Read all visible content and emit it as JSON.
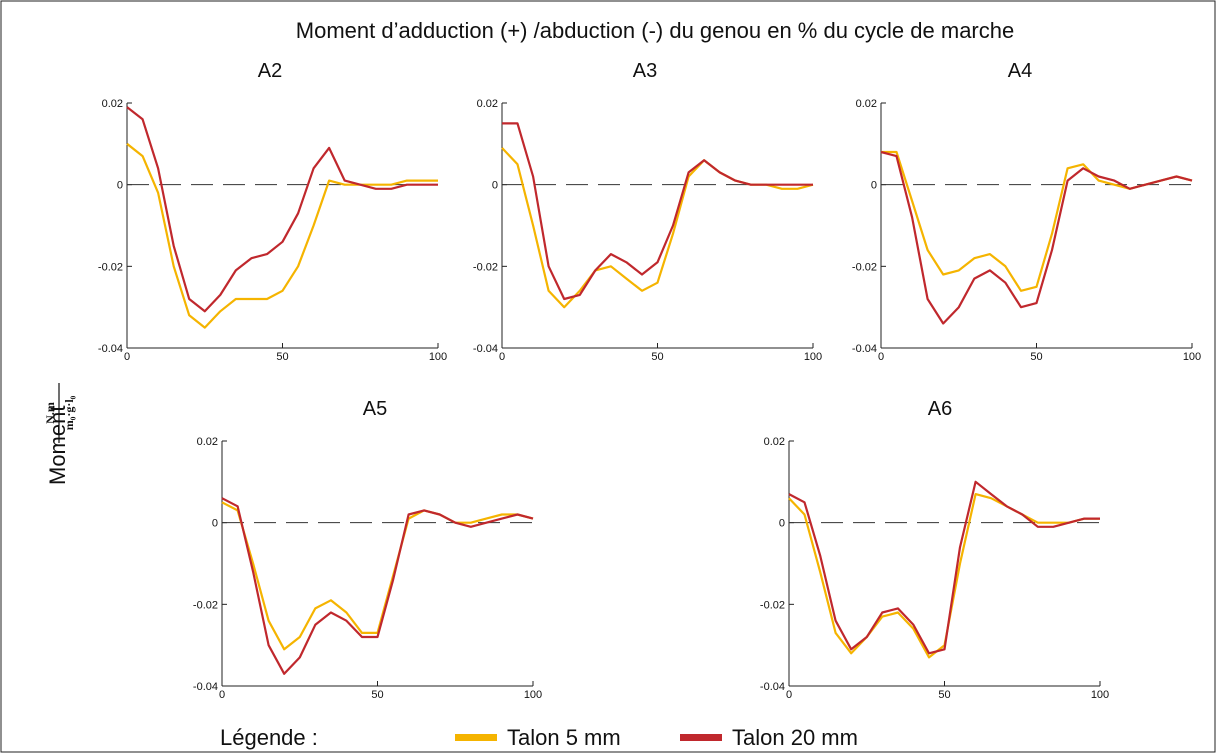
{
  "figure": {
    "title": "Moment d’adduction (+) /abduction (-) du genou en % du cycle de marche",
    "ylabel": "Moment",
    "ylabel_num": "N.m",
    "ylabel_den": "m₀·g·l₀",
    "legend_label": "Légende :"
  },
  "chart_data": [
    {
      "type": "line",
      "title": "A2",
      "x": [
        0,
        5,
        10,
        15,
        20,
        25,
        30,
        35,
        40,
        45,
        50,
        55,
        60,
        65,
        70,
        75,
        80,
        85,
        90,
        95,
        100
      ],
      "xlim": [
        0,
        100
      ],
      "xticks": [
        0,
        50,
        100
      ],
      "ylim": [
        -0.04,
        0.02
      ],
      "yticks": [
        0.02,
        0,
        -0.02,
        -0.04
      ],
      "series": [
        {
          "name": "Talon 5 mm",
          "color": "#f5b400",
          "values": [
            0.01,
            0.007,
            -0.002,
            -0.02,
            -0.032,
            -0.035,
            -0.031,
            -0.028,
            -0.028,
            -0.028,
            -0.026,
            -0.02,
            -0.01,
            0.001,
            0.0,
            0.0,
            0.0,
            0.0,
            0.001,
            0.001,
            0.001
          ]
        },
        {
          "name": "Talon 20 mm",
          "color": "#c0282d",
          "values": [
            0.019,
            0.016,
            0.004,
            -0.015,
            -0.028,
            -0.031,
            -0.027,
            -0.021,
            -0.018,
            -0.017,
            -0.014,
            -0.007,
            0.004,
            0.009,
            0.001,
            0.0,
            -0.001,
            -0.001,
            0.0,
            0.0,
            0.0
          ]
        }
      ]
    },
    {
      "type": "line",
      "title": "A3",
      "x": [
        0,
        5,
        10,
        15,
        20,
        25,
        30,
        35,
        40,
        45,
        50,
        55,
        60,
        65,
        70,
        75,
        80,
        85,
        90,
        95,
        100
      ],
      "xlim": [
        0,
        100
      ],
      "xticks": [
        0,
        50,
        100
      ],
      "ylim": [
        -0.04,
        0.02
      ],
      "yticks": [
        0.02,
        0,
        -0.02,
        -0.04
      ],
      "series": [
        {
          "name": "Talon 5 mm",
          "color": "#f5b400",
          "values": [
            0.009,
            0.005,
            -0.01,
            -0.026,
            -0.03,
            -0.026,
            -0.021,
            -0.02,
            -0.023,
            -0.026,
            -0.024,
            -0.012,
            0.002,
            0.006,
            0.003,
            0.001,
            0.0,
            0.0,
            -0.001,
            -0.001,
            0.0
          ]
        },
        {
          "name": "Talon 20 mm",
          "color": "#c0282d",
          "values": [
            0.015,
            0.015,
            0.002,
            -0.02,
            -0.028,
            -0.027,
            -0.021,
            -0.017,
            -0.019,
            -0.022,
            -0.019,
            -0.01,
            0.003,
            0.006,
            0.003,
            0.001,
            0.0,
            0.0,
            0.0,
            0.0,
            0.0
          ]
        }
      ]
    },
    {
      "type": "line",
      "title": "A4",
      "x": [
        0,
        5,
        10,
        15,
        20,
        25,
        30,
        35,
        40,
        45,
        50,
        55,
        60,
        65,
        70,
        75,
        80,
        85,
        90,
        95,
        100
      ],
      "xlim": [
        0,
        100
      ],
      "xticks": [
        0,
        50,
        100
      ],
      "ylim": [
        -0.04,
        0.02
      ],
      "yticks": [
        0.02,
        0,
        -0.02,
        -0.04
      ],
      "series": [
        {
          "name": "Talon 5 mm",
          "color": "#f5b400",
          "values": [
            0.008,
            0.008,
            -0.004,
            -0.016,
            -0.022,
            -0.021,
            -0.018,
            -0.017,
            -0.02,
            -0.026,
            -0.025,
            -0.012,
            0.004,
            0.005,
            0.001,
            0.0,
            -0.001,
            0.0,
            0.001,
            0.002,
            0.001
          ]
        },
        {
          "name": "Talon 20 mm",
          "color": "#c0282d",
          "values": [
            0.008,
            0.007,
            -0.008,
            -0.028,
            -0.034,
            -0.03,
            -0.023,
            -0.021,
            -0.024,
            -0.03,
            -0.029,
            -0.016,
            0.001,
            0.004,
            0.002,
            0.001,
            -0.001,
            0.0,
            0.001,
            0.002,
            0.001
          ]
        }
      ]
    },
    {
      "type": "line",
      "title": "A5",
      "x": [
        0,
        5,
        10,
        15,
        20,
        25,
        30,
        35,
        40,
        45,
        50,
        55,
        60,
        65,
        70,
        75,
        80,
        85,
        90,
        95,
        100
      ],
      "xlim": [
        0,
        100
      ],
      "xticks": [
        0,
        50,
        100
      ],
      "ylim": [
        -0.04,
        0.02
      ],
      "yticks": [
        0.02,
        0,
        -0.02,
        -0.04
      ],
      "series": [
        {
          "name": "Talon 5 mm",
          "color": "#f5b400",
          "values": [
            0.005,
            0.003,
            -0.01,
            -0.024,
            -0.031,
            -0.028,
            -0.021,
            -0.019,
            -0.022,
            -0.027,
            -0.027,
            -0.013,
            0.001,
            0.003,
            0.002,
            0.0,
            0.0,
            0.001,
            0.002,
            0.002,
            0.001
          ]
        },
        {
          "name": "Talon 20 mm",
          "color": "#c0282d",
          "values": [
            0.006,
            0.004,
            -0.012,
            -0.03,
            -0.037,
            -0.033,
            -0.025,
            -0.022,
            -0.024,
            -0.028,
            -0.028,
            -0.014,
            0.002,
            0.003,
            0.002,
            0.0,
            -0.001,
            0.0,
            0.001,
            0.002,
            0.001
          ]
        }
      ]
    },
    {
      "type": "line",
      "title": "A6",
      "x": [
        0,
        5,
        10,
        15,
        20,
        25,
        30,
        35,
        40,
        45,
        50,
        55,
        60,
        65,
        70,
        75,
        80,
        85,
        90,
        95,
        100
      ],
      "xlim": [
        0,
        100
      ],
      "xticks": [
        0,
        50,
        100
      ],
      "ylim": [
        -0.04,
        0.02
      ],
      "yticks": [
        0.02,
        0,
        -0.02,
        -0.04
      ],
      "series": [
        {
          "name": "Talon 5 mm",
          "color": "#f5b400",
          "values": [
            0.006,
            0.002,
            -0.012,
            -0.027,
            -0.032,
            -0.028,
            -0.023,
            -0.022,
            -0.026,
            -0.033,
            -0.03,
            -0.01,
            0.007,
            0.006,
            0.004,
            0.002,
            0.0,
            0.0,
            0.0,
            0.001,
            0.001
          ]
        },
        {
          "name": "Talon 20 mm",
          "color": "#c0282d",
          "values": [
            0.007,
            0.005,
            -0.008,
            -0.024,
            -0.031,
            -0.028,
            -0.022,
            -0.021,
            -0.025,
            -0.032,
            -0.031,
            -0.006,
            0.01,
            0.007,
            0.004,
            0.002,
            -0.001,
            -0.001,
            0.0,
            0.001,
            0.001
          ]
        }
      ]
    }
  ]
}
